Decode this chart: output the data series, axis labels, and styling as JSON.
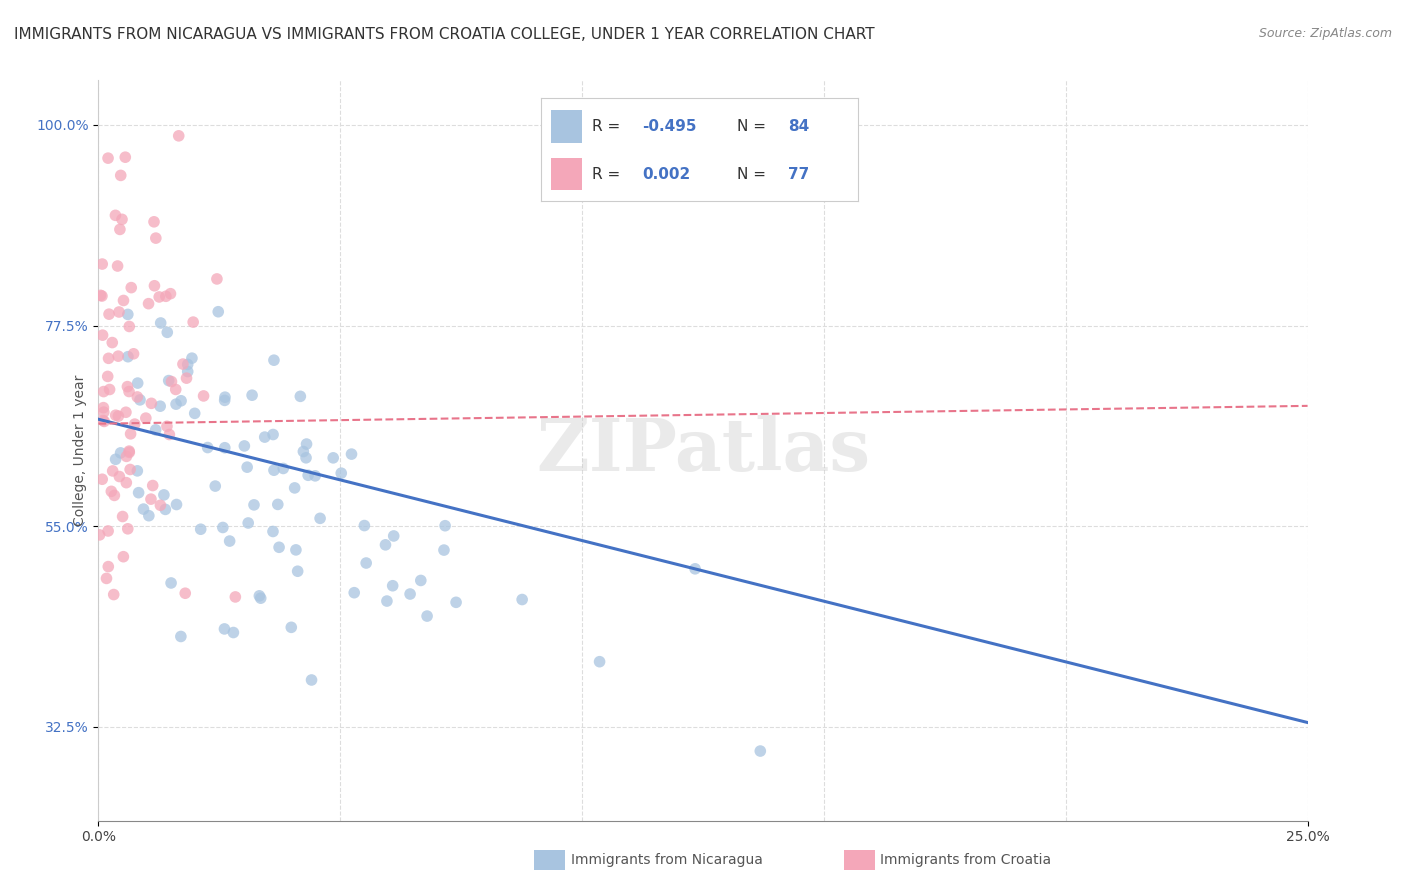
{
  "title": "IMMIGRANTS FROM NICARAGUA VS IMMIGRANTS FROM CROATIA COLLEGE, UNDER 1 YEAR CORRELATION CHART",
  "source": "Source: ZipAtlas.com",
  "ylabel": "College, Under 1 year",
  "x_min": 0.0,
  "x_max": 0.25,
  "y_min": 0.22,
  "y_max": 1.05,
  "x_ticks": [
    0.0,
    0.25
  ],
  "x_tick_labels": [
    "0.0%",
    "25.0%"
  ],
  "y_ticks": [
    0.325,
    0.55,
    0.775,
    1.0
  ],
  "y_tick_labels": [
    "32.5%",
    "55.0%",
    "77.5%",
    "100.0%"
  ],
  "nicaragua_color": "#a8c4e0",
  "croatia_color": "#f4a7b9",
  "nicaragua_line_color": "#4472c4",
  "croatia_line_color": "#e8748a",
  "nicaragua_R": -0.495,
  "nicaragua_N": 84,
  "croatia_R": 0.002,
  "croatia_N": 77,
  "legend_label_nicaragua": "Immigrants from Nicaragua",
  "legend_label_croatia": "Immigrants from Croatia",
  "watermark": "ZIPatlas",
  "background_color": "#ffffff",
  "grid_color": "#dddddd",
  "title_fontsize": 11,
  "axis_label_fontsize": 10,
  "tick_fontsize": 10,
  "nicaragua_seed": 42,
  "croatia_seed": 123
}
